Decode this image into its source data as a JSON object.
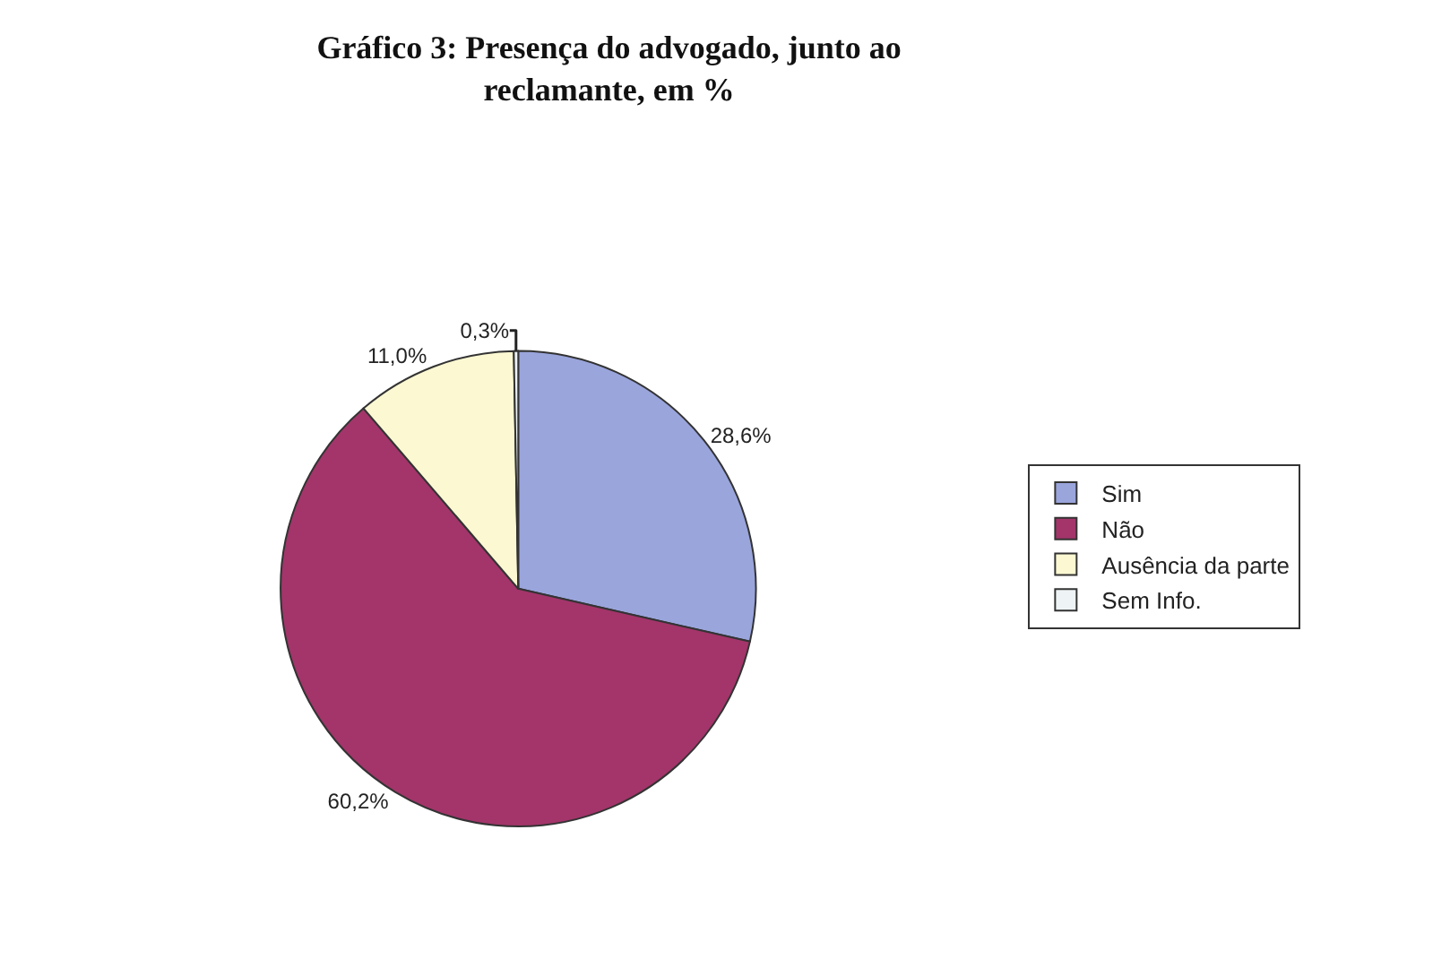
{
  "chart_data": {
    "type": "pie",
    "title": "Gráfico 3: Presença do advogado, junto ao reclamante, em %",
    "categories": [
      "Sim",
      "Não",
      "Ausência da parte",
      "Sem Info."
    ],
    "values": [
      28.6,
      60.2,
      11.0,
      0.3
    ],
    "value_labels": [
      "28,6%",
      "60,2%",
      "11,0%",
      "0,3%"
    ],
    "colors": [
      "#9aa5dc",
      "#a3356a",
      "#fbf8d2",
      "#eef4f6"
    ],
    "legend": "right"
  }
}
